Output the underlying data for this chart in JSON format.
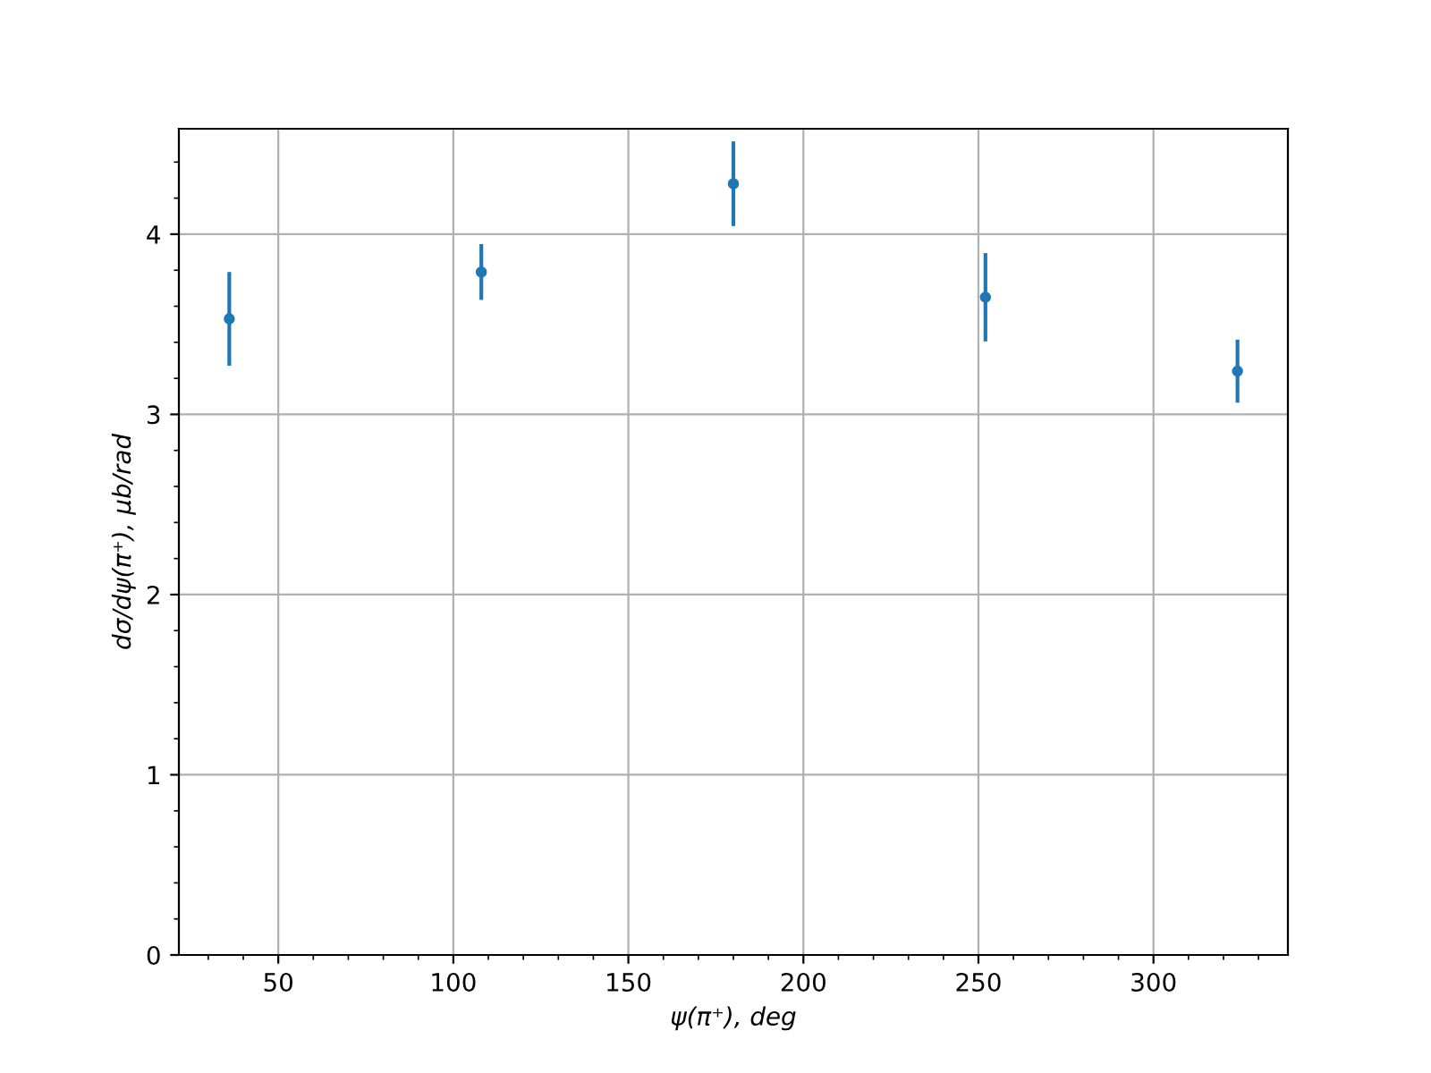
{
  "chart_data": {
    "type": "scatter",
    "xlabel": "ψ(π⁺), deg",
    "ylabel": "dσ/dψ(π⁺), μb/rad",
    "x": [
      36,
      108,
      180,
      252,
      324
    ],
    "series": [
      {
        "color": "#1f77b4",
        "values": [
          3.53,
          3.79,
          4.28,
          3.65,
          3.24
        ],
        "errors": [
          0.26,
          0.155,
          0.235,
          0.245,
          0.175
        ]
      }
    ],
    "xlim": [
      21.6,
      338.4
    ],
    "ylim": [
      0,
      4.585
    ],
    "xticks": [
      50,
      100,
      150,
      200,
      250,
      300
    ],
    "yticks": [
      0,
      1,
      2,
      3,
      4
    ],
    "grid": true,
    "marker": "circle"
  }
}
